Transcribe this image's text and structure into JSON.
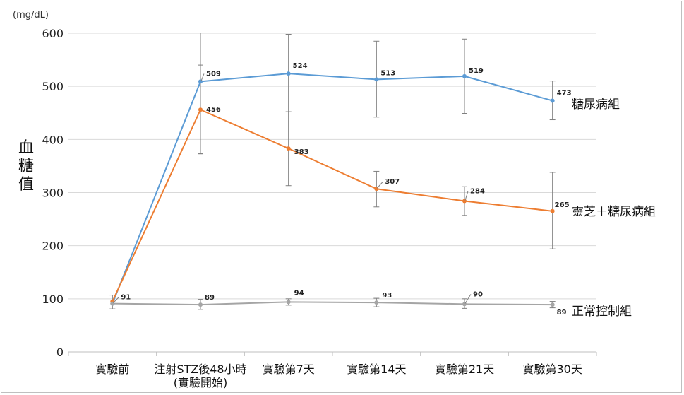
{
  "chart_data": {
    "type": "line",
    "unit_label": "(mg/dL)",
    "ylabel": "血糖值",
    "ylim": [
      0,
      600
    ],
    "yticks": [
      0,
      100,
      200,
      300,
      400,
      500,
      600
    ],
    "grid": true,
    "categories": [
      [
        "實驗前"
      ],
      [
        "注射STZ後48小時",
        "(實驗開始)"
      ],
      [
        "實驗第7天"
      ],
      [
        "實驗第14天"
      ],
      [
        "實驗第21天"
      ],
      [
        "實驗第30天"
      ]
    ],
    "series": [
      {
        "name": "糖尿病組",
        "color": "#5b9bd5",
        "values": [
          91,
          509,
          524,
          513,
          519,
          473
        ],
        "error_low": [
          null,
          373,
          452,
          442,
          449,
          437
        ],
        "error_high": [
          null,
          600,
          598,
          585,
          589,
          510
        ]
      },
      {
        "name": "靈芝＋糖尿病組",
        "color": "#ed7d31",
        "values": [
          95,
          456,
          383,
          307,
          284,
          265
        ],
        "error_low": [
          null,
          373,
          313,
          273,
          257,
          194
        ],
        "error_high": [
          null,
          540,
          452,
          340,
          311,
          338
        ]
      },
      {
        "name": "正常控制組",
        "color": "#a5a5a5",
        "values": [
          91,
          89,
          94,
          93,
          90,
          89
        ],
        "error_low": [
          81,
          80,
          88,
          85,
          82,
          83
        ],
        "error_high": [
          107,
          99,
          100,
          101,
          100,
          95
        ]
      }
    ],
    "data_labels": [
      {
        "series": 0,
        "index": 1,
        "text": "509"
      },
      {
        "series": 0,
        "index": 2,
        "text": "524"
      },
      {
        "series": 0,
        "index": 3,
        "text": "513"
      },
      {
        "series": 0,
        "index": 4,
        "text": "519"
      },
      {
        "series": 0,
        "index": 5,
        "text": "473"
      },
      {
        "series": 1,
        "index": 1,
        "text": "456"
      },
      {
        "series": 1,
        "index": 2,
        "text": "383"
      },
      {
        "series": 1,
        "index": 3,
        "text": "307"
      },
      {
        "series": 1,
        "index": 4,
        "text": "284"
      },
      {
        "series": 1,
        "index": 5,
        "text": "265"
      },
      {
        "series": 2,
        "index": 0,
        "text": "91"
      },
      {
        "series": 2,
        "index": 1,
        "text": "89"
      },
      {
        "series": 2,
        "index": 2,
        "text": "94"
      },
      {
        "series": 2,
        "index": 3,
        "text": "93"
      },
      {
        "series": 2,
        "index": 4,
        "text": "90"
      },
      {
        "series": 2,
        "index": 5,
        "text": "89"
      }
    ]
  }
}
